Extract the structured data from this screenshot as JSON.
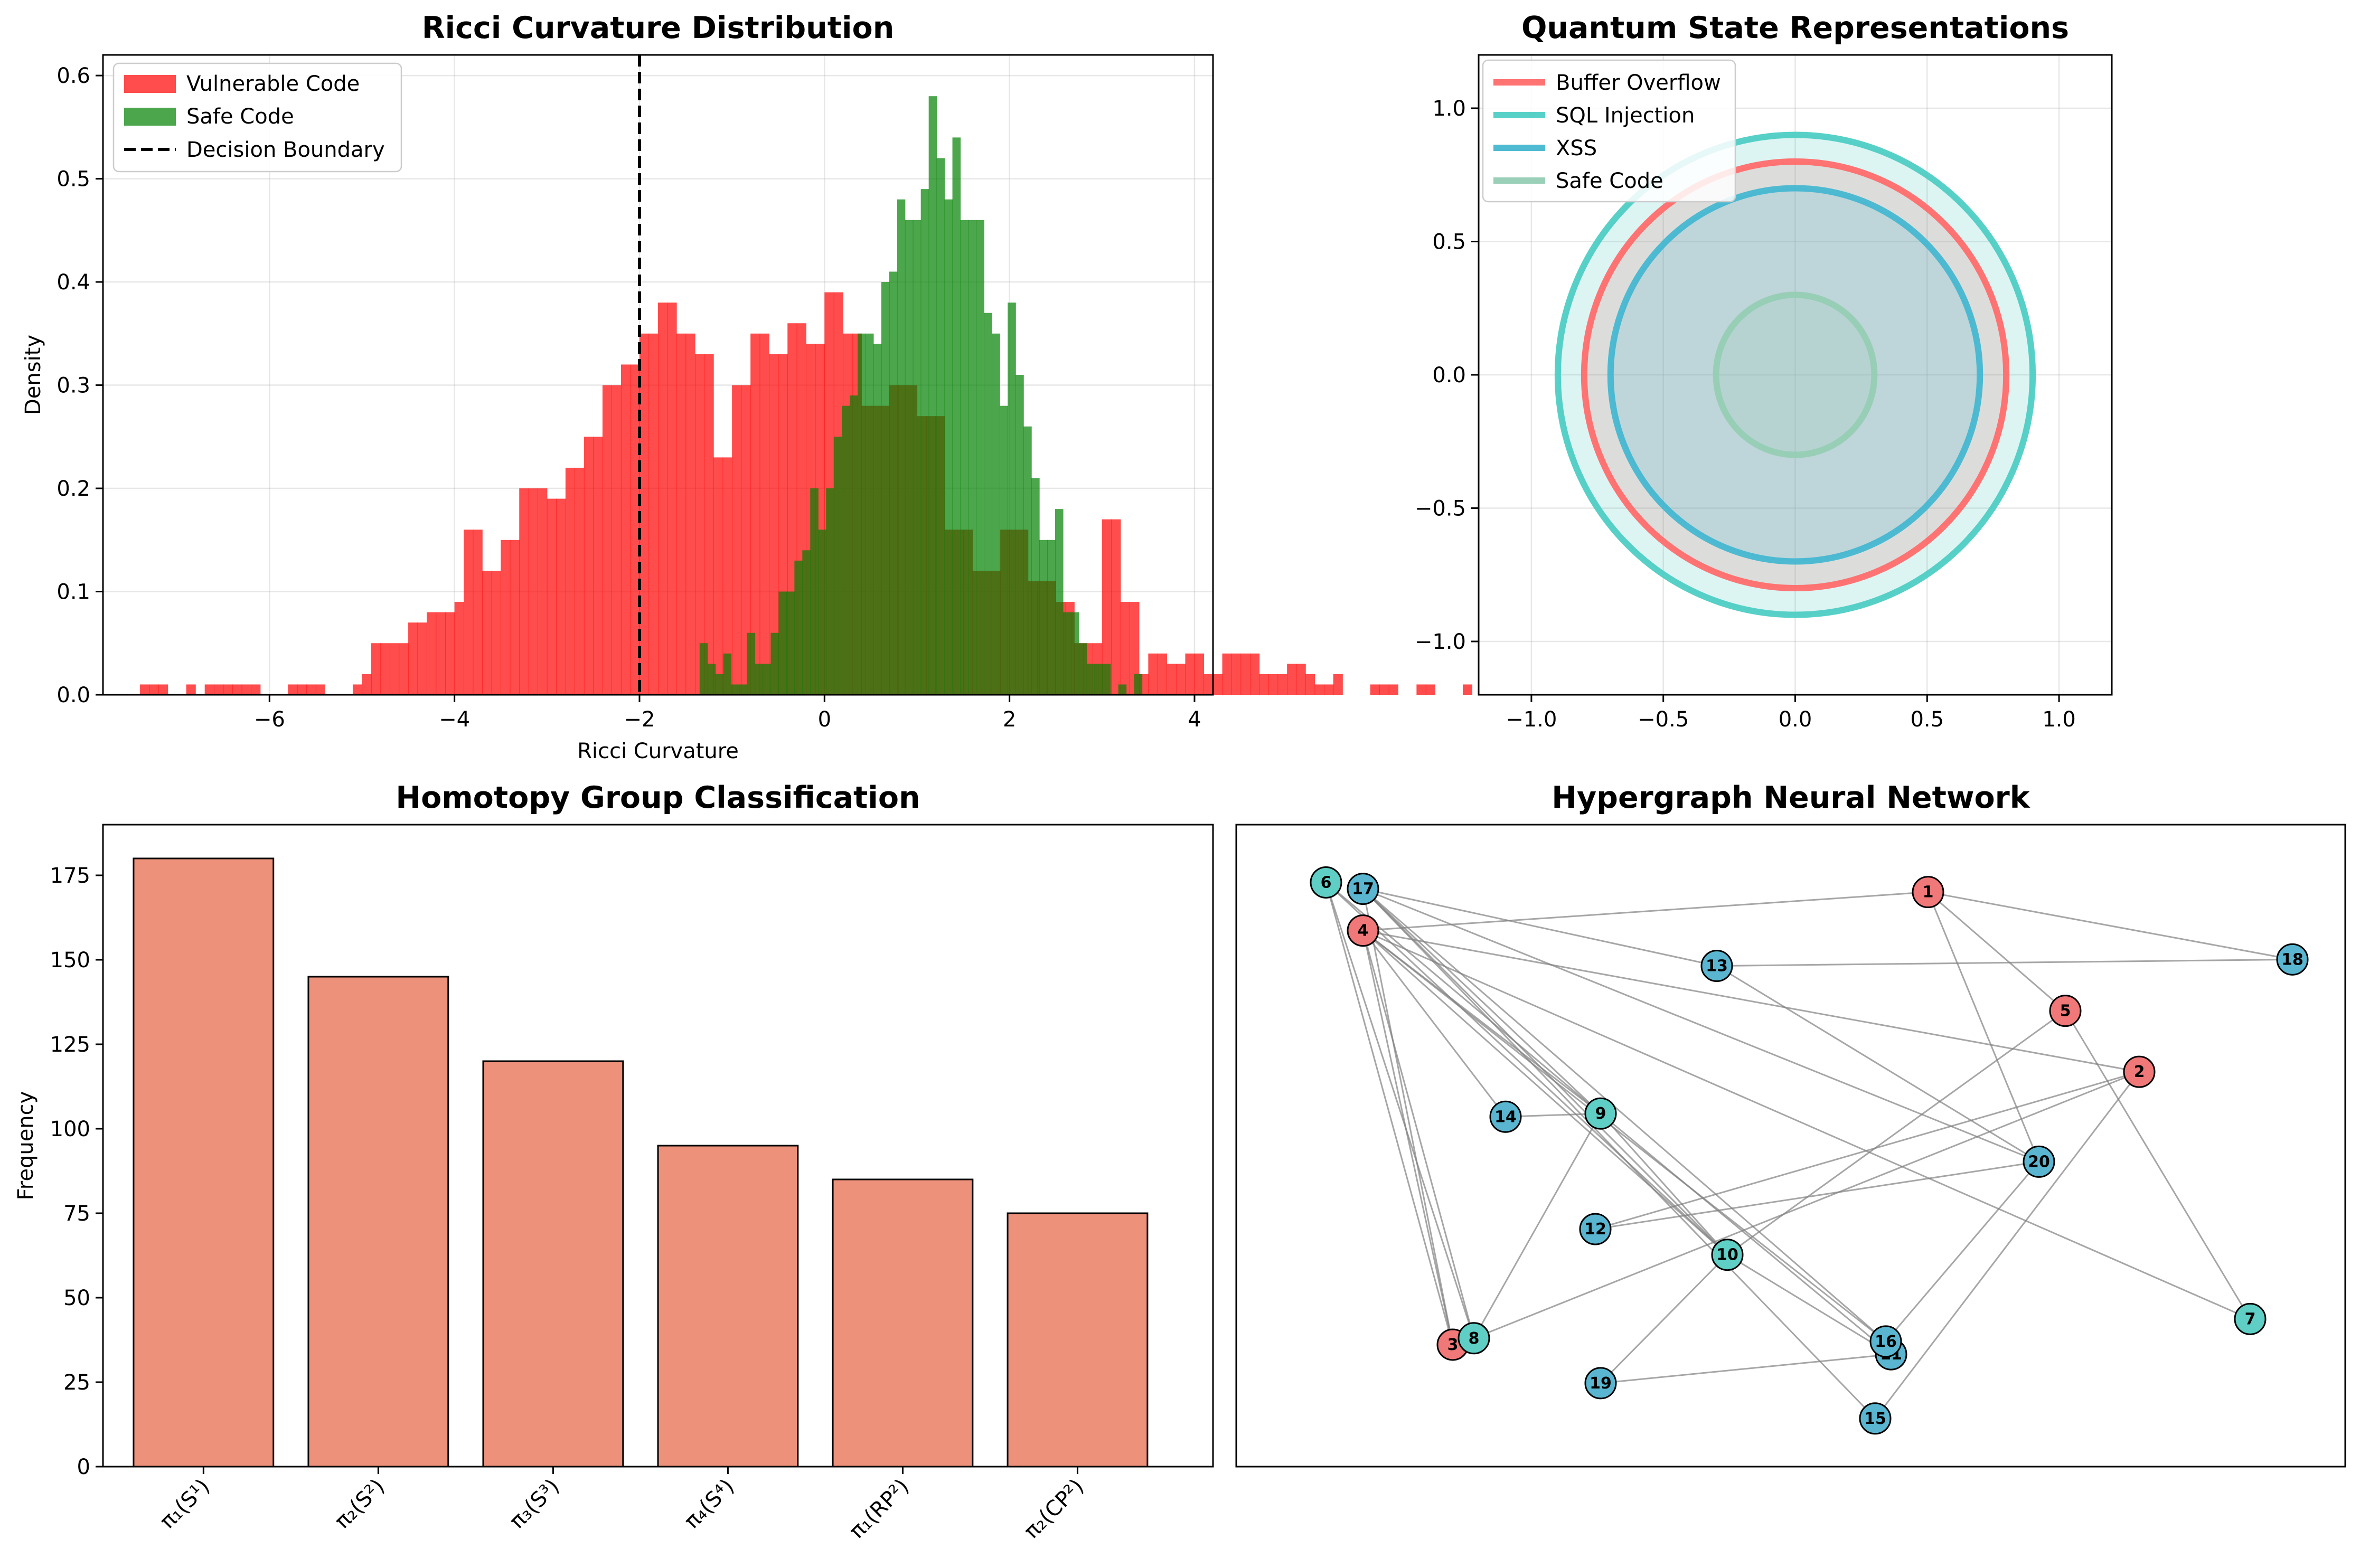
{
  "chart_data": [
    {
      "id": "ricci",
      "type": "histogram",
      "title": "Ricci Curvature Distribution",
      "xlabel": "Ricci Curvature",
      "ylabel": "Density",
      "xlim": [
        -7.8,
        4.2
      ],
      "ylim": [
        0,
        0.62
      ],
      "xticks": [
        -6,
        -4,
        -2,
        0,
        2,
        4
      ],
      "yticks": [
        0.0,
        0.1,
        0.2,
        0.3,
        0.4,
        0.5,
        0.6
      ],
      "grid": true,
      "legend_position": "top-left",
      "legend": [
        "Vulnerable Code",
        "Safe Code",
        "Decision Boundary"
      ],
      "decision_boundary": -2,
      "series": [
        {
          "name": "Vulnerable Code",
          "color": "#ff0000",
          "alpha": 0.7,
          "bin_start": -7.4,
          "bin_width": 0.1,
          "values": [
            0.01,
            0.01,
            0.01,
            0.0,
            0.0,
            0.01,
            0.0,
            0.01,
            0.01,
            0.01,
            0.01,
            0.01,
            0.01,
            0.0,
            0.0,
            0.0,
            0.01,
            0.01,
            0.01,
            0.01,
            0.0,
            0.0,
            0.0,
            0.01,
            0.02,
            0.05,
            0.05,
            0.05,
            0.05,
            0.07,
            0.07,
            0.08,
            0.08,
            0.08,
            0.09,
            0.16,
            0.16,
            0.12,
            0.12,
            0.15,
            0.15,
            0.2,
            0.2,
            0.2,
            0.19,
            0.19,
            0.22,
            0.22,
            0.25,
            0.25,
            0.3,
            0.3,
            0.32,
            0.32,
            0.35,
            0.35,
            0.38,
            0.38,
            0.35,
            0.35,
            0.33,
            0.33,
            0.23,
            0.23,
            0.3,
            0.3,
            0.35,
            0.35,
            0.33,
            0.33,
            0.36,
            0.36,
            0.34,
            0.34,
            0.39,
            0.39,
            0.35,
            0.35,
            0.28,
            0.28,
            0.28,
            0.3,
            0.3,
            0.3,
            0.27,
            0.27,
            0.27,
            0.16,
            0.16,
            0.16,
            0.12,
            0.12,
            0.12,
            0.16,
            0.16,
            0.16,
            0.11,
            0.11,
            0.11,
            0.09,
            0.09,
            0.05,
            0.05,
            0.05,
            0.17,
            0.17,
            0.09,
            0.09,
            0.02,
            0.04,
            0.04,
            0.03,
            0.03,
            0.04,
            0.04,
            0.02,
            0.02,
            0.04,
            0.04,
            0.04,
            0.04,
            0.02,
            0.02,
            0.02,
            0.03,
            0.03,
            0.02,
            0.01,
            0.01,
            0.02,
            0.0,
            0.0,
            0.0,
            0.01,
            0.01,
            0.01,
            0.0,
            0.0,
            0.01,
            0.01,
            0.0,
            0.0,
            0.0,
            0.01
          ]
        },
        {
          "name": "Safe Code",
          "color": "#008000",
          "alpha": 0.7,
          "bin_start": -1.35,
          "bin_width": 0.0854,
          "values": [
            0.05,
            0.03,
            0.02,
            0.04,
            0.01,
            0.01,
            0.06,
            0.03,
            0.03,
            0.06,
            0.1,
            0.1,
            0.13,
            0.14,
            0.2,
            0.16,
            0.2,
            0.25,
            0.28,
            0.29,
            0.35,
            0.35,
            0.34,
            0.4,
            0.41,
            0.48,
            0.46,
            0.46,
            0.49,
            0.58,
            0.52,
            0.48,
            0.54,
            0.46,
            0.46,
            0.46,
            0.37,
            0.35,
            0.28,
            0.38,
            0.31,
            0.26,
            0.21,
            0.15,
            0.15,
            0.18,
            0.08,
            0.08,
            0.05,
            0.03,
            0.03,
            0.03,
            0.0,
            0.01,
            0.0,
            0.02
          ]
        }
      ]
    },
    {
      "id": "quantum",
      "type": "circles",
      "title": "Quantum State Representations",
      "xlim": [
        -1.2,
        1.2
      ],
      "ylim": [
        -1.2,
        1.2
      ],
      "xticks": [
        -1.0,
        -0.5,
        0.0,
        0.5,
        1.0
      ],
      "yticks": [
        -1.0,
        -0.5,
        0.0,
        0.5,
        1.0
      ],
      "grid": true,
      "legend_position": "top-left",
      "series": [
        {
          "name": "Buffer Overflow",
          "radius": 0.8,
          "color": "#ff6b6b"
        },
        {
          "name": "SQL Injection",
          "radius": 0.9,
          "color": "#4ecdc4"
        },
        {
          "name": "XSS",
          "radius": 0.7,
          "color": "#45b7d1"
        },
        {
          "name": "Safe Code",
          "radius": 0.3,
          "color": "#96ceb4"
        }
      ]
    },
    {
      "id": "homotopy",
      "type": "bar",
      "title": "Homotopy Group Classification",
      "ylabel": "Frequency",
      "ylim": [
        0,
        190
      ],
      "yticks": [
        0,
        25,
        50,
        75,
        100,
        125,
        150,
        175
      ],
      "grid": false,
      "color": "#e9765a",
      "categories": [
        "π₁(S¹)",
        "π₂(S²)",
        "π₃(S³)",
        "π₄(S⁴)",
        "π₁(RP²)",
        "π₂(CP²)"
      ],
      "values": [
        180,
        145,
        120,
        95,
        85,
        75
      ]
    },
    {
      "id": "hypergraph",
      "type": "network",
      "title": "Hypergraph Neural Network",
      "xlim": [
        -1.05,
        1.05
      ],
      "ylim": [
        -1.0,
        1.0
      ],
      "node_colors": {
        "red": "#f07878",
        "teal": "#5fcfc6",
        "blue": "#5ab6d0"
      },
      "nodes": [
        {
          "id": "1",
          "x": 0.26,
          "y": 0.79,
          "color": "red"
        },
        {
          "id": "2",
          "x": 0.66,
          "y": 0.23,
          "color": "red"
        },
        {
          "id": "3",
          "x": -0.64,
          "y": -0.62,
          "color": "red"
        },
        {
          "id": "4",
          "x": -0.81,
          "y": 0.67,
          "color": "red"
        },
        {
          "id": "5",
          "x": 0.52,
          "y": 0.42,
          "color": "red"
        },
        {
          "id": "6",
          "x": -0.88,
          "y": 0.82,
          "color": "teal"
        },
        {
          "id": "7",
          "x": 0.87,
          "y": -0.54,
          "color": "teal"
        },
        {
          "id": "8",
          "x": -0.6,
          "y": -0.6,
          "color": "teal"
        },
        {
          "id": "9",
          "x": -0.36,
          "y": 0.1,
          "color": "teal"
        },
        {
          "id": "10",
          "x": -0.12,
          "y": -0.34,
          "color": "teal"
        },
        {
          "id": "11",
          "x": 0.19,
          "y": -0.65,
          "color": "blue"
        },
        {
          "id": "12",
          "x": -0.37,
          "y": -0.26,
          "color": "blue"
        },
        {
          "id": "13",
          "x": -0.14,
          "y": 0.56,
          "color": "blue"
        },
        {
          "id": "14",
          "x": -0.54,
          "y": 0.09,
          "color": "blue"
        },
        {
          "id": "15",
          "x": 0.16,
          "y": -0.85,
          "color": "blue"
        },
        {
          "id": "16",
          "x": 0.18,
          "y": -0.61,
          "color": "blue"
        },
        {
          "id": "17",
          "x": -0.81,
          "y": 0.8,
          "color": "blue"
        },
        {
          "id": "18",
          "x": 0.95,
          "y": 0.58,
          "color": "blue"
        },
        {
          "id": "19",
          "x": -0.36,
          "y": -0.74,
          "color": "blue"
        },
        {
          "id": "20",
          "x": 0.47,
          "y": -0.05,
          "color": "blue"
        }
      ],
      "edges": [
        [
          "6",
          "3"
        ],
        [
          "6",
          "8"
        ],
        [
          "6",
          "9"
        ],
        [
          "6",
          "10"
        ],
        [
          "17",
          "13"
        ],
        [
          "17",
          "20"
        ],
        [
          "17",
          "9"
        ],
        [
          "17",
          "10"
        ],
        [
          "17",
          "16"
        ],
        [
          "17",
          "15"
        ],
        [
          "17",
          "3"
        ],
        [
          "4",
          "1"
        ],
        [
          "4",
          "9"
        ],
        [
          "4",
          "10"
        ],
        [
          "4",
          "14"
        ],
        [
          "4",
          "16"
        ],
        [
          "4",
          "2"
        ],
        [
          "4",
          "7"
        ],
        [
          "4",
          "3"
        ],
        [
          "4",
          "8"
        ],
        [
          "1",
          "18"
        ],
        [
          "1",
          "5"
        ],
        [
          "1",
          "20"
        ],
        [
          "13",
          "18"
        ],
        [
          "13",
          "20"
        ],
        [
          "5",
          "7"
        ],
        [
          "5",
          "10"
        ],
        [
          "2",
          "12"
        ],
        [
          "2",
          "8"
        ],
        [
          "2",
          "15"
        ],
        [
          "14",
          "9"
        ],
        [
          "9",
          "11"
        ],
        [
          "9",
          "8"
        ],
        [
          "9",
          "10"
        ],
        [
          "12",
          "20"
        ],
        [
          "20",
          "16"
        ],
        [
          "10",
          "11"
        ],
        [
          "10",
          "19"
        ],
        [
          "19",
          "11"
        ],
        [
          "3",
          "8"
        ]
      ]
    }
  ]
}
